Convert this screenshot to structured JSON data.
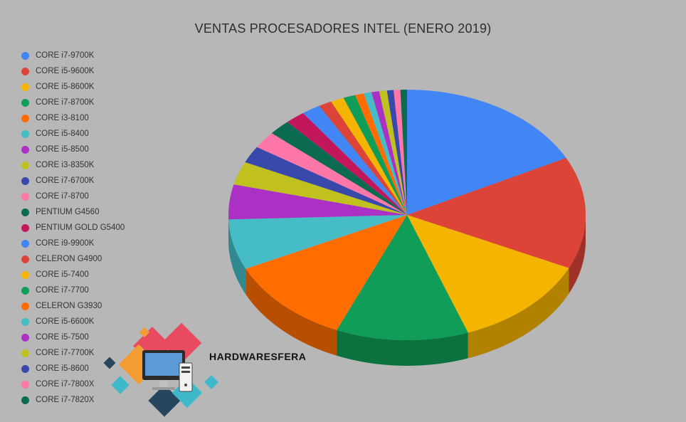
{
  "chart_data": {
    "type": "pie",
    "title": "VENTAS PROCESADORES INTEL (ENERO 2019)",
    "legend_position": "left",
    "series": [
      {
        "name": "CORE i7-9700K",
        "value": 17.5,
        "color": "#4285f4"
      },
      {
        "name": "CORE i5-9600K",
        "value": 14.5,
        "color": "#db4437"
      },
      {
        "name": "CORE i5-8600K",
        "value": 12.5,
        "color": "#f4b400"
      },
      {
        "name": "CORE i7-8700K",
        "value": 12.0,
        "color": "#0f9d58"
      },
      {
        "name": "CORE i3-8100",
        "value": 11.5,
        "color": "#ff6d00"
      },
      {
        "name": "CORE i5-8400",
        "value": 6.5,
        "color": "#46bdc6"
      },
      {
        "name": "CORE i5-8500",
        "value": 4.5,
        "color": "#ab30c4"
      },
      {
        "name": "CORE i3-8350K",
        "value": 3.0,
        "color": "#c0c01e"
      },
      {
        "name": "CORE i7-6700K",
        "value": 2.2,
        "color": "#3949ab"
      },
      {
        "name": "CORE i7-8700",
        "value": 2.2,
        "color": "#ff77a9"
      },
      {
        "name": "PENTIUM G4560",
        "value": 2.0,
        "color": "#0b6b50"
      },
      {
        "name": "PENTIUM GOLD G5400",
        "value": 1.8,
        "color": "#c2185b"
      },
      {
        "name": "CORE i9-9900K",
        "value": 1.7,
        "color": "#4285f4"
      },
      {
        "name": "CELERON G4900",
        "value": 1.2,
        "color": "#db4437"
      },
      {
        "name": "CORE i5-7400",
        "value": 1.2,
        "color": "#f4b400"
      },
      {
        "name": "CORE i7-7700",
        "value": 1.1,
        "color": "#0f9d58"
      },
      {
        "name": "CELERON G3930",
        "value": 0.8,
        "color": "#ff6d00"
      },
      {
        "name": "CORE i5-6600K",
        "value": 0.7,
        "color": "#46bdc6"
      },
      {
        "name": "CORE i5-7500",
        "value": 0.7,
        "color": "#ab30c4"
      },
      {
        "name": "CORE i7-7700K",
        "value": 0.7,
        "color": "#c0c01e"
      },
      {
        "name": "CORE i5-8600",
        "value": 0.6,
        "color": "#3949ab"
      },
      {
        "name": "CORE i7-7800X",
        "value": 0.6,
        "color": "#ff77a9"
      },
      {
        "name": "CORE i7-7820X",
        "value": 0.6,
        "color": "#0b6b50"
      }
    ]
  },
  "watermark": {
    "text": "HARDWARESFERA"
  }
}
